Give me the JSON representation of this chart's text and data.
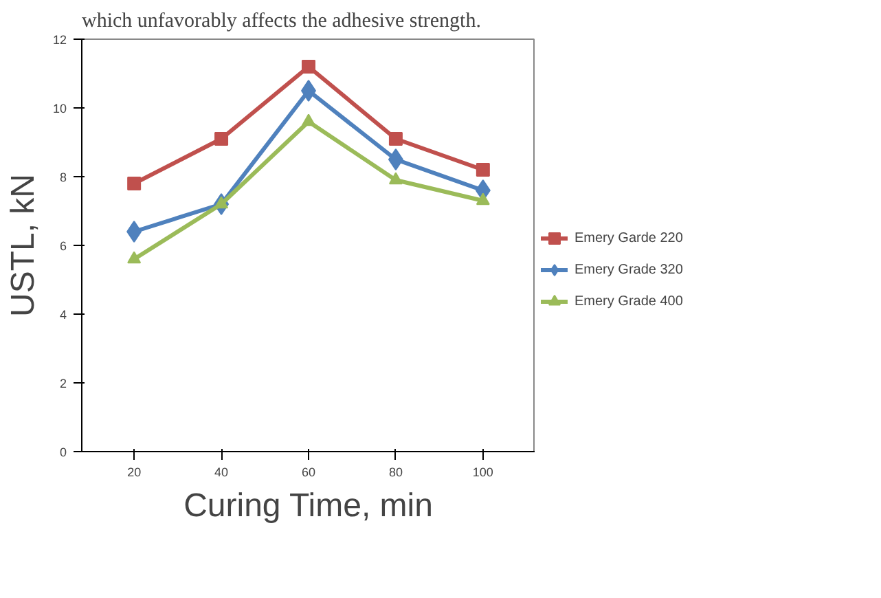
{
  "chart_data": {
    "type": "line",
    "xlabel": "Curing Time, min",
    "ylabel": "USTL, kN",
    "annotations": [
      "which unfavorably affects the adhesive strength."
    ],
    "categories": [
      "20",
      "40",
      "60",
      "80",
      "100"
    ],
    "series": [
      {
        "name": "Emery Garde 220",
        "color": "#c0504d",
        "marker": "square",
        "values": [
          7.8,
          9.1,
          11.2,
          9.1,
          8.2
        ]
      },
      {
        "name": "Emery Grade 320",
        "color": "#4f81bd",
        "marker": "diamond",
        "values": [
          6.4,
          7.2,
          10.5,
          8.5,
          7.6
        ]
      },
      {
        "name": "Emery Grade 400",
        "color": "#9bbb59",
        "marker": "triangle",
        "values": [
          5.6,
          7.2,
          9.6,
          7.9,
          7.3
        ]
      }
    ],
    "ylim": [
      0,
      12
    ],
    "yticks": [
      0,
      2,
      4,
      6,
      8,
      10,
      12
    ],
    "grid": false,
    "legend": "right"
  }
}
